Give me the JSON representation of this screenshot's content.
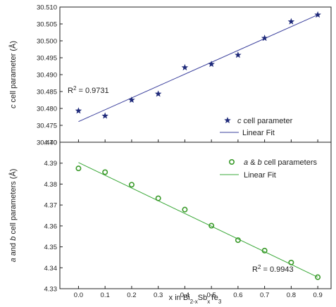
{
  "chart_data": [
    {
      "type": "scatter",
      "ylabel": "c cell parameter (Å)",
      "ylim": [
        30.47,
        30.51
      ],
      "yticks": [
        "30.470",
        "30.475",
        "30.480",
        "30.485",
        "30.490",
        "30.495",
        "30.500",
        "30.505",
        "30.510"
      ],
      "series": [
        {
          "name": "c cell parameter",
          "marker": "star",
          "color": "#1f2a7a",
          "x": [
            0.0,
            0.1,
            0.2,
            0.3,
            0.4,
            0.5,
            0.6,
            0.7,
            0.8,
            0.9
          ],
          "y": [
            30.4793,
            30.4778,
            30.4825,
            30.4843,
            30.4921,
            30.4931,
            30.4958,
            30.5008,
            30.5057,
            30.5077
          ]
        }
      ],
      "fit": {
        "name": "Linear Fit",
        "color": "#3a3f9c",
        "y_start": 30.4761,
        "y_end": 30.5077
      },
      "annotation": {
        "base": "R",
        "sup": "2",
        "text": " = 0.9731"
      },
      "legend_position": "bottom-right"
    },
    {
      "type": "scatter",
      "ylabel": "a and b cell parameters (Å)",
      "ylim": [
        4.33,
        4.4
      ],
      "yticks": [
        "4.33",
        "4.34",
        "4.35",
        "4.36",
        "4.37",
        "4.38",
        "4.39",
        "4.40"
      ],
      "series": [
        {
          "name": "a & b cell parameters",
          "marker": "open-circle",
          "color": "#3a9a2a",
          "x": [
            0.0,
            0.1,
            0.2,
            0.3,
            0.4,
            0.5,
            0.6,
            0.7,
            0.8,
            0.9
          ],
          "y": [
            4.3875,
            4.3857,
            4.3797,
            4.3732,
            4.3678,
            4.3601,
            4.3532,
            4.3482,
            4.3425,
            4.3355
          ]
        }
      ],
      "fit": {
        "name": "Linear Fit",
        "color": "#3aa838",
        "y_start": 4.3903,
        "y_end": 4.3355
      },
      "annotation": {
        "base": "R",
        "sup": "2",
        "text": " = 0.9943"
      },
      "legend_position": "top-right"
    }
  ],
  "shared_x": {
    "xlim": [
      -0.07,
      0.95
    ],
    "xticks": [
      "0.0",
      "0.1",
      "0.2",
      "0.3",
      "0.4",
      "0.5",
      "0.6",
      "0.7",
      "0.8",
      "0.9"
    ],
    "xlabel_parts": [
      "x in Bi",
      "2-x",
      "Sb",
      "x",
      "Te",
      "3"
    ]
  }
}
